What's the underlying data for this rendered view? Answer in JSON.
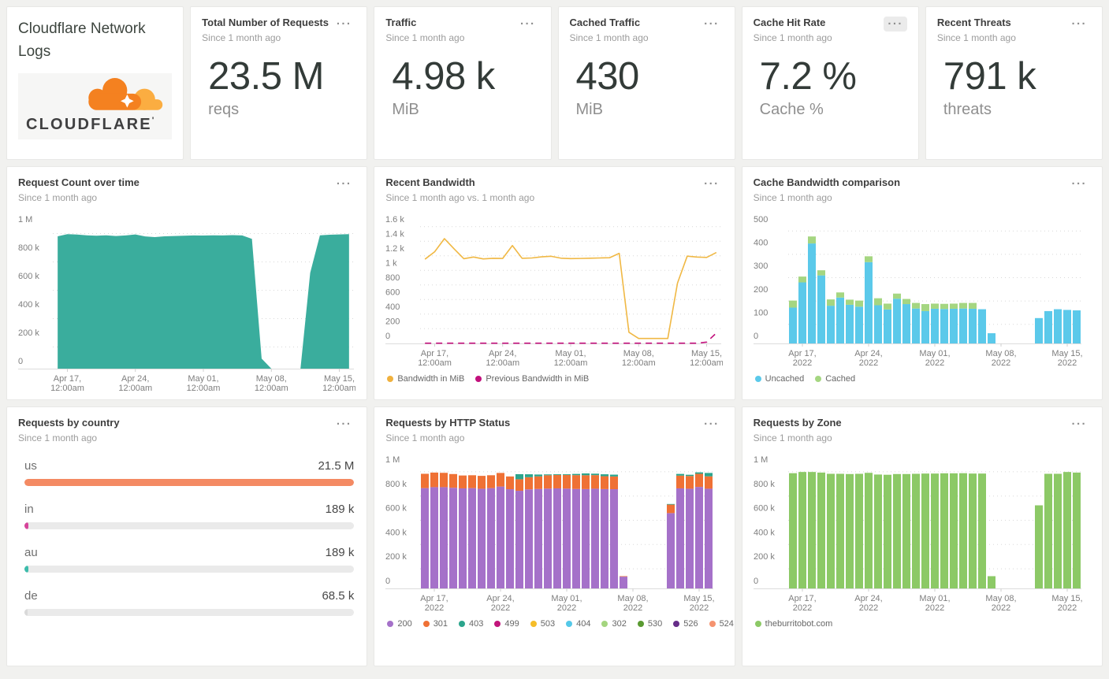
{
  "branding": {
    "title": "Cloudflare Network Logs",
    "logo_text": "CLOUDFLARE",
    "logo_tick": "'",
    "logo_orange": "#f48120",
    "logo_light_orange": "#fbad41"
  },
  "ui": {
    "menu_glyph": "···"
  },
  "stats": [
    {
      "title": "Total Number of Requests",
      "subtitle": "Since 1 month ago",
      "value": "23.5 M",
      "unit": "reqs"
    },
    {
      "title": "Traffic",
      "subtitle": "Since 1 month ago",
      "value": "4.98 k",
      "unit": "MiB"
    },
    {
      "title": "Cached Traffic",
      "subtitle": "Since 1 month ago",
      "value": "430",
      "unit": "MiB"
    },
    {
      "title": "Cache Hit Rate",
      "subtitle": "Since 1 month ago",
      "value": "7.2 %",
      "unit": "Cache %"
    },
    {
      "title": "Recent Threats",
      "subtitle": "Since 1 month ago",
      "value": "791 k",
      "unit": "threats"
    }
  ],
  "chart_data": {
    "request_count": {
      "name": "request-count",
      "type": "area",
      "title": "Request Count over time",
      "subtitle": "Since 1 month ago",
      "color": "#3aad9d",
      "ymax": 1000,
      "clip_right": true,
      "yticks": [
        {
          "v": 1000,
          "label": "1 M"
        },
        {
          "v": 800,
          "label": "800 k"
        },
        {
          "v": 600,
          "label": "600 k"
        },
        {
          "v": 400,
          "label": "400 k"
        },
        {
          "v": 200,
          "label": "200 k"
        },
        {
          "v": 0,
          "label": "0"
        }
      ],
      "xticks": [
        {
          "d": 1,
          "lines": [
            "Apr 17,",
            "12:00am"
          ]
        },
        {
          "d": 8,
          "lines": [
            "Apr 24,",
            "12:00am"
          ]
        },
        {
          "d": 15,
          "lines": [
            "May 01,",
            "12:00am"
          ]
        },
        {
          "d": 22,
          "lines": [
            "May 08,",
            "12:00am"
          ]
        },
        {
          "d": 29,
          "lines": [
            "May 15,",
            "12:00am"
          ]
        }
      ],
      "unit": "requests (k)",
      "values": [
        878,
        893,
        890,
        885,
        882,
        885,
        880,
        884,
        891,
        877,
        872,
        878,
        880,
        882,
        884,
        883,
        885,
        884,
        886,
        884,
        860,
        15,
        0,
        0,
        0,
        0,
        620,
        885,
        889,
        891,
        893
      ]
    },
    "recent_bandwidth": {
      "name": "recent-bandwidth",
      "type": "line",
      "title": "Recent Bandwidth",
      "subtitle": "Since 1 month ago vs. 1 month ago",
      "ymax": 1600,
      "clip_right": true,
      "yticks": [
        {
          "v": 1600,
          "label": "1.6 k"
        },
        {
          "v": 1400,
          "label": "1.4 k"
        },
        {
          "v": 1200,
          "label": "1.2 k"
        },
        {
          "v": 1000,
          "label": "1 k"
        },
        {
          "v": 800,
          "label": "800"
        },
        {
          "v": 600,
          "label": "600"
        },
        {
          "v": 400,
          "label": "400"
        },
        {
          "v": 200,
          "label": "200"
        },
        {
          "v": 0,
          "label": "0"
        }
      ],
      "xticks": [
        {
          "d": 1,
          "lines": [
            "Apr 17,",
            "12:00am"
          ]
        },
        {
          "d": 8,
          "lines": [
            "Apr 24,",
            "12:00am"
          ]
        },
        {
          "d": 15,
          "lines": [
            "May 01,",
            "12:00am"
          ]
        },
        {
          "d": 22,
          "lines": [
            "May 08,",
            "12:00am"
          ]
        },
        {
          "d": 29,
          "lines": [
            "May 15,",
            "12:00am"
          ]
        }
      ],
      "series": [
        {
          "name": "Bandwidth in MiB",
          "color": "#f0b844",
          "dashed": false,
          "values": [
            1048,
            1150,
            1330,
            1190,
            1055,
            1078,
            1052,
            1060,
            1058,
            1235,
            1060,
            1065,
            1080,
            1088,
            1062,
            1056,
            1058,
            1062,
            1065,
            1068,
            1128,
            45,
            -40,
            -40,
            -40,
            -40,
            720,
            1090,
            1078,
            1072,
            1140
          ]
        },
        {
          "name": "Previous Bandwidth in MiB",
          "color": "#c2107c",
          "dashed": true,
          "values": [
            -105,
            -105,
            -105,
            -105,
            -105,
            -105,
            -105,
            -105,
            -105,
            -105,
            -105,
            -105,
            -105,
            -105,
            -105,
            -105,
            -105,
            -105,
            -105,
            -105,
            -105,
            -105,
            -105,
            -105,
            -105,
            -105,
            -105,
            -105,
            -105,
            -90,
            35
          ]
        }
      ],
      "legend": [
        {
          "label": "Bandwidth in MiB",
          "color": "#f0b13e"
        },
        {
          "label": "Previous Bandwidth in MiB",
          "color": "#c2107c"
        }
      ]
    },
    "cache_bandwidth": {
      "name": "cache-bandwidth",
      "type": "stacked-bars",
      "title": "Cache Bandwidth comparison",
      "subtitle": "Since 1 month ago",
      "ymax": 500,
      "colors": [
        "#5bc9ea",
        "#a5d681"
      ],
      "yticks": [
        {
          "v": 500,
          "label": "500"
        },
        {
          "v": 400,
          "label": "400"
        },
        {
          "v": 300,
          "label": "300"
        },
        {
          "v": 200,
          "label": "200"
        },
        {
          "v": 100,
          "label": "100"
        },
        {
          "v": 0,
          "label": "0"
        }
      ],
      "xticks": [
        {
          "d": 1,
          "lines": [
            "Apr 17,",
            "2022"
          ]
        },
        {
          "d": 8,
          "lines": [
            "Apr 24,",
            "2022"
          ]
        },
        {
          "d": 15,
          "lines": [
            "May 01,",
            "2022"
          ]
        },
        {
          "d": 22,
          "lines": [
            "May 08,",
            "2022"
          ]
        },
        {
          "d": 29,
          "lines": [
            "May 15,",
            "2022"
          ]
        }
      ],
      "bars": [
        [
          120,
          30
        ],
        [
          228,
          25
        ],
        [
          395,
          30
        ],
        [
          258,
          22
        ],
        [
          128,
          27
        ],
        [
          163,
          22
        ],
        [
          132,
          22
        ],
        [
          124,
          26
        ],
        [
          315,
          25
        ],
        [
          130,
          30
        ],
        [
          112,
          25
        ],
        [
          158,
          22
        ],
        [
          135,
          22
        ],
        [
          116,
          24
        ],
        [
          105,
          30
        ],
        [
          115,
          22
        ],
        [
          114,
          22
        ],
        [
          115,
          22
        ],
        [
          116,
          24
        ],
        [
          115,
          25
        ],
        [
          113,
          0
        ],
        [
          10,
          0
        ],
        [
          0,
          0
        ],
        [
          0,
          0
        ],
        [
          0,
          0
        ],
        [
          0,
          0
        ],
        [
          75,
          0
        ],
        [
          105,
          0
        ],
        [
          113,
          0
        ],
        [
          110,
          0
        ],
        [
          108,
          0
        ]
      ],
      "legend": [
        {
          "label": "Uncached",
          "color": "#5bc9ea"
        },
        {
          "label": "Cached",
          "color": "#a5d681"
        }
      ]
    },
    "requests_by_country": {
      "type": "hbar",
      "title": "Requests by country",
      "subtitle": "Since 1 month ago",
      "track": "#eaeaea",
      "rows": [
        {
          "code": "us",
          "value": "21.5 M",
          "percent": 100,
          "color": "#f48a63"
        },
        {
          "code": "in",
          "value": "189 k",
          "percent": 1.1,
          "color": "#d6449a"
        },
        {
          "code": "au",
          "value": "189 k",
          "percent": 1.1,
          "color": "#3cbcab"
        },
        {
          "code": "de",
          "value": "68.5 k",
          "percent": 0.5,
          "color": "#d9d9d9"
        }
      ]
    },
    "http_status": {
      "name": "http-status",
      "type": "stacked-bars",
      "title": "Requests by HTTP Status",
      "subtitle": "Since 1 month ago",
      "ymax": 1000,
      "colors": [
        "#a571c9",
        "#ef7135",
        "#2ca58d"
      ],
      "series_names": [
        "200",
        "301",
        "403"
      ],
      "unit": "requests (k)",
      "yticks": [
        {
          "v": 1000,
          "label": "1 M"
        },
        {
          "v": 800,
          "label": "800 k"
        },
        {
          "v": 600,
          "label": "600 k"
        },
        {
          "v": 400,
          "label": "400 k"
        },
        {
          "v": 200,
          "label": "200 k"
        },
        {
          "v": 0,
          "label": "0"
        }
      ],
      "xticks": [
        {
          "d": 1,
          "lines": [
            "Apr 17,",
            "2022"
          ]
        },
        {
          "d": 8,
          "lines": [
            "Apr 24,",
            "2022"
          ]
        },
        {
          "d": 15,
          "lines": [
            "May 01,",
            "2022"
          ]
        },
        {
          "d": 22,
          "lines": [
            "May 08,",
            "2022"
          ]
        },
        {
          "d": 29,
          "lines": [
            "May 15,",
            "2022"
          ]
        }
      ],
      "bars": [
        [
          762,
          118,
          0
        ],
        [
          770,
          120,
          0
        ],
        [
          770,
          118,
          0
        ],
        [
          765,
          113,
          0
        ],
        [
          760,
          106,
          0
        ],
        [
          762,
          106,
          0
        ],
        [
          757,
          106,
          0
        ],
        [
          762,
          106,
          0
        ],
        [
          775,
          112,
          0
        ],
        [
          753,
          105,
          0
        ],
        [
          740,
          95,
          42
        ],
        [
          752,
          100,
          24
        ],
        [
          755,
          104,
          15
        ],
        [
          758,
          110,
          7
        ],
        [
          760,
          110,
          6
        ],
        [
          758,
          112,
          6
        ],
        [
          755,
          114,
          10
        ],
        [
          754,
          114,
          15
        ],
        [
          757,
          112,
          12
        ],
        [
          754,
          106,
          16
        ],
        [
          753,
          105,
          15
        ],
        [
          32,
          4,
          0
        ],
        [
          0,
          0,
          0
        ],
        [
          0,
          0,
          0
        ],
        [
          0,
          0,
          0
        ],
        [
          0,
          0,
          0
        ],
        [
          556,
          70,
          5
        ],
        [
          760,
          105,
          14
        ],
        [
          757,
          105,
          10
        ],
        [
          772,
          108,
          12
        ],
        [
          757,
          102,
          28
        ]
      ],
      "legend": [
        {
          "label": "200",
          "color": "#a571c9"
        },
        {
          "label": "301",
          "color": "#ef7135"
        },
        {
          "label": "403",
          "color": "#2ca58d"
        },
        {
          "label": "499",
          "color": "#c2157b"
        },
        {
          "label": "503",
          "color": "#f5bd29"
        },
        {
          "label": "404",
          "color": "#54c8e8"
        },
        {
          "label": "302",
          "color": "#a4d57f"
        },
        {
          "label": "530",
          "color": "#5a9a31"
        },
        {
          "label": "526",
          "color": "#662d89"
        },
        {
          "label": "524",
          "color": "#f5936f"
        }
      ]
    },
    "requests_by_zone": {
      "name": "requests-by-zone",
      "type": "bars",
      "title": "Requests by Zone",
      "subtitle": "Since 1 month ago",
      "ymax": 1000,
      "color": "#8cc966",
      "unit": "requests (k)",
      "yticks": [
        {
          "v": 1000,
          "label": "1 M"
        },
        {
          "v": 800,
          "label": "800 k"
        },
        {
          "v": 600,
          "label": "600 k"
        },
        {
          "v": 400,
          "label": "400 k"
        },
        {
          "v": 200,
          "label": "200 k"
        },
        {
          "v": 0,
          "label": "0"
        }
      ],
      "xticks": [
        {
          "d": 1,
          "lines": [
            "Apr 17,",
            "2022"
          ]
        },
        {
          "d": 8,
          "lines": [
            "Apr 24,",
            "2022"
          ]
        },
        {
          "d": 15,
          "lines": [
            "May 01,",
            "2022"
          ]
        },
        {
          "d": 22,
          "lines": [
            "May 08,",
            "2022"
          ]
        },
        {
          "d": 29,
          "lines": [
            "May 15,",
            "2022"
          ]
        }
      ],
      "values": [
        885,
        895,
        895,
        890,
        880,
        880,
        878,
        880,
        888,
        874,
        872,
        878,
        878,
        880,
        882,
        882,
        884,
        884,
        885,
        882,
        882,
        36,
        0,
        0,
        0,
        0,
        620,
        880,
        880,
        895,
        890
      ],
      "legend": [
        {
          "label": "theburritobot.com",
          "color": "#8cc966"
        }
      ]
    }
  }
}
